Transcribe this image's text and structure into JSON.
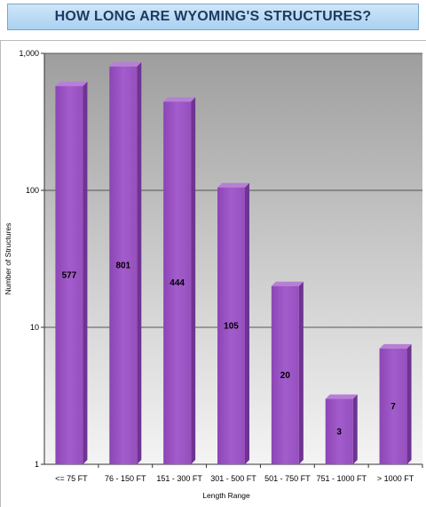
{
  "title": "HOW LONG ARE WYOMING'S STRUCTURES?",
  "colors": {
    "bar_front": "#9b55c2",
    "bar_side": "#6f3392",
    "bar_top": "#b77fd6",
    "title_text": "#1f3a63"
  },
  "chart_data": {
    "type": "bar",
    "title": "HOW LONG ARE WYOMING'S STRUCTURES?",
    "xlabel": "Length Range",
    "ylabel": "Number of Structures",
    "scale": "log",
    "ylim": [
      1,
      1000
    ],
    "grid": true,
    "categories": [
      "<= 75 FT",
      "76 - 150 FT",
      "151 - 300 FT",
      "301 - 500 FT",
      "501 - 750 FT",
      "751 - 1000 FT",
      "> 1000 FT"
    ],
    "values": [
      577,
      801,
      444,
      105,
      20,
      3,
      7
    ],
    "y_ticks": [
      {
        "value": 1,
        "label": "1"
      },
      {
        "value": 10,
        "label": "10"
      },
      {
        "value": 100,
        "label": "100"
      },
      {
        "value": 1000,
        "label": "1,000"
      }
    ]
  }
}
